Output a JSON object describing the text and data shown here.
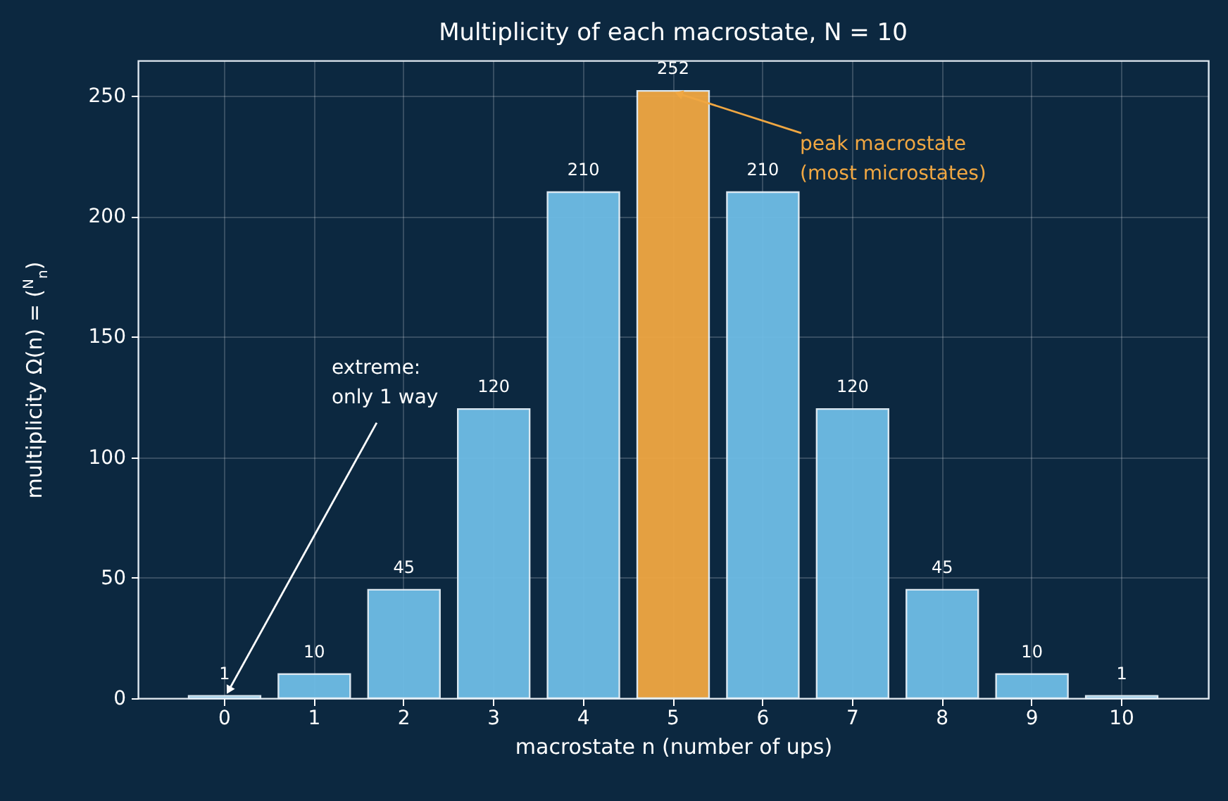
{
  "chart_data": {
    "type": "bar",
    "title": "Multiplicity of each macrostate, N = 10",
    "xlabel": "macrostate  n  (number of ups)",
    "ylabel": "multiplicity  Ω(n) = ($^{N}$$_{n}$)",
    "categories": [
      "0",
      "1",
      "2",
      "3",
      "4",
      "5",
      "6",
      "7",
      "8",
      "9",
      "10"
    ],
    "values": [
      1,
      10,
      45,
      120,
      210,
      252,
      210,
      120,
      45,
      10,
      1
    ],
    "colors": [
      "#6ebde6",
      "#6ebde6",
      "#6ebde6",
      "#6ebde6",
      "#6ebde6",
      "#f0a742",
      "#6ebde6",
      "#6ebde6",
      "#6ebde6",
      "#6ebde6",
      "#6ebde6"
    ],
    "ylim": [
      0,
      264.6
    ],
    "yticks": [
      0,
      50,
      100,
      150,
      200,
      250
    ],
    "grid": true,
    "data_labels": true,
    "annotations": [
      {
        "text": "peak macrostate\n(most microstates)",
        "x": "5",
        "y": 252
      },
      {
        "text": "extreme:\nonly 1 way",
        "x": "0",
        "y": 1
      }
    ]
  }
}
